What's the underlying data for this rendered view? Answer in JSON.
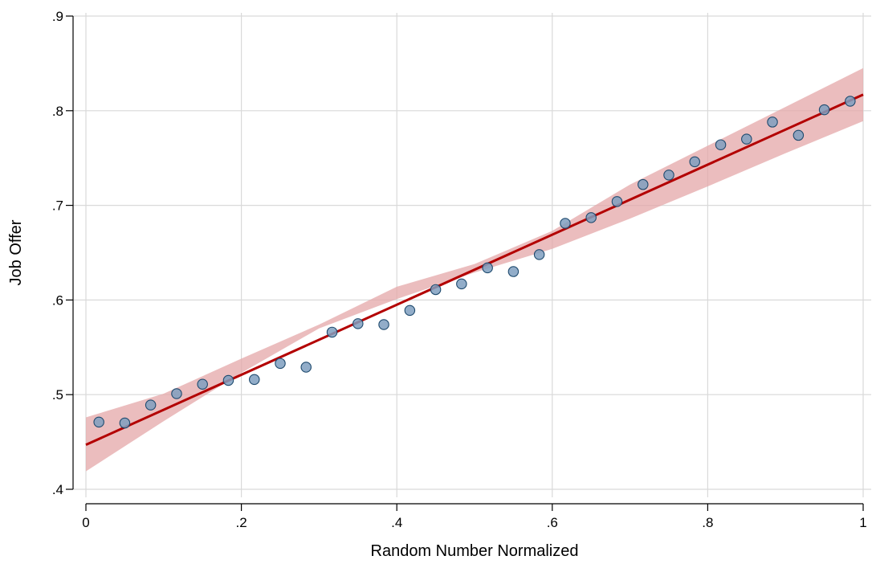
{
  "colors": {
    "grid": "#d9d9d9",
    "axis": "#000000",
    "fit_line": "#b30000",
    "ci_band": "#e4a7a8",
    "marker_fill": "#7f9fbf",
    "marker_stroke": "#1e4a6e"
  },
  "chart_data": {
    "type": "scatter",
    "title": "",
    "xlabel": "Random Number Normalized",
    "ylabel": "Job Offer",
    "xlim": [
      0,
      1
    ],
    "ylim": [
      0.4,
      0.9
    ],
    "grid": true,
    "x_ticks": [
      {
        "value": 0,
        "label": "0"
      },
      {
        "value": 0.2,
        "label": ".2"
      },
      {
        "value": 0.4,
        "label": ".4"
      },
      {
        "value": 0.6,
        "label": ".6"
      },
      {
        "value": 0.8,
        "label": ".8"
      },
      {
        "value": 1,
        "label": "1"
      }
    ],
    "y_ticks": [
      {
        "value": 0.4,
        "label": ".4"
      },
      {
        "value": 0.5,
        "label": ".5"
      },
      {
        "value": 0.6,
        "label": ".6"
      },
      {
        "value": 0.7,
        "label": ".7"
      },
      {
        "value": 0.8,
        "label": ".8"
      },
      {
        "value": 0.9,
        "label": ".9"
      }
    ],
    "scatter": {
      "x": [
        0.0167,
        0.05,
        0.0833,
        0.1167,
        0.15,
        0.1833,
        0.2167,
        0.25,
        0.2833,
        0.3167,
        0.35,
        0.3833,
        0.4167,
        0.45,
        0.4833,
        0.5167,
        0.55,
        0.5833,
        0.6167,
        0.65,
        0.6833,
        0.7167,
        0.75,
        0.7833,
        0.8167,
        0.85,
        0.8833,
        0.9167,
        0.95,
        0.9833
      ],
      "y": [
        0.471,
        0.47,
        0.489,
        0.501,
        0.511,
        0.515,
        0.516,
        0.533,
        0.529,
        0.566,
        0.575,
        0.574,
        0.589,
        0.611,
        0.617,
        0.634,
        0.63,
        0.648,
        0.681,
        0.687,
        0.704,
        0.722,
        0.732,
        0.746,
        0.764,
        0.77,
        0.788,
        0.774,
        0.801,
        0.81
      ]
    },
    "fit_line": {
      "x": [
        0,
        1
      ],
      "y": [
        0.447,
        0.817
      ]
    },
    "confidence_band": {
      "x": [
        0,
        0.1,
        0.2,
        0.3,
        0.4,
        0.5,
        0.6,
        0.7,
        0.8,
        0.9,
        1.0
      ],
      "lower": [
        0.419,
        0.472,
        0.523,
        0.57,
        0.601,
        0.629,
        0.654,
        0.686,
        0.72,
        0.755,
        0.789
      ],
      "upper": [
        0.476,
        0.501,
        0.538,
        0.574,
        0.614,
        0.638,
        0.673,
        0.722,
        0.763,
        0.804,
        0.845
      ]
    }
  }
}
